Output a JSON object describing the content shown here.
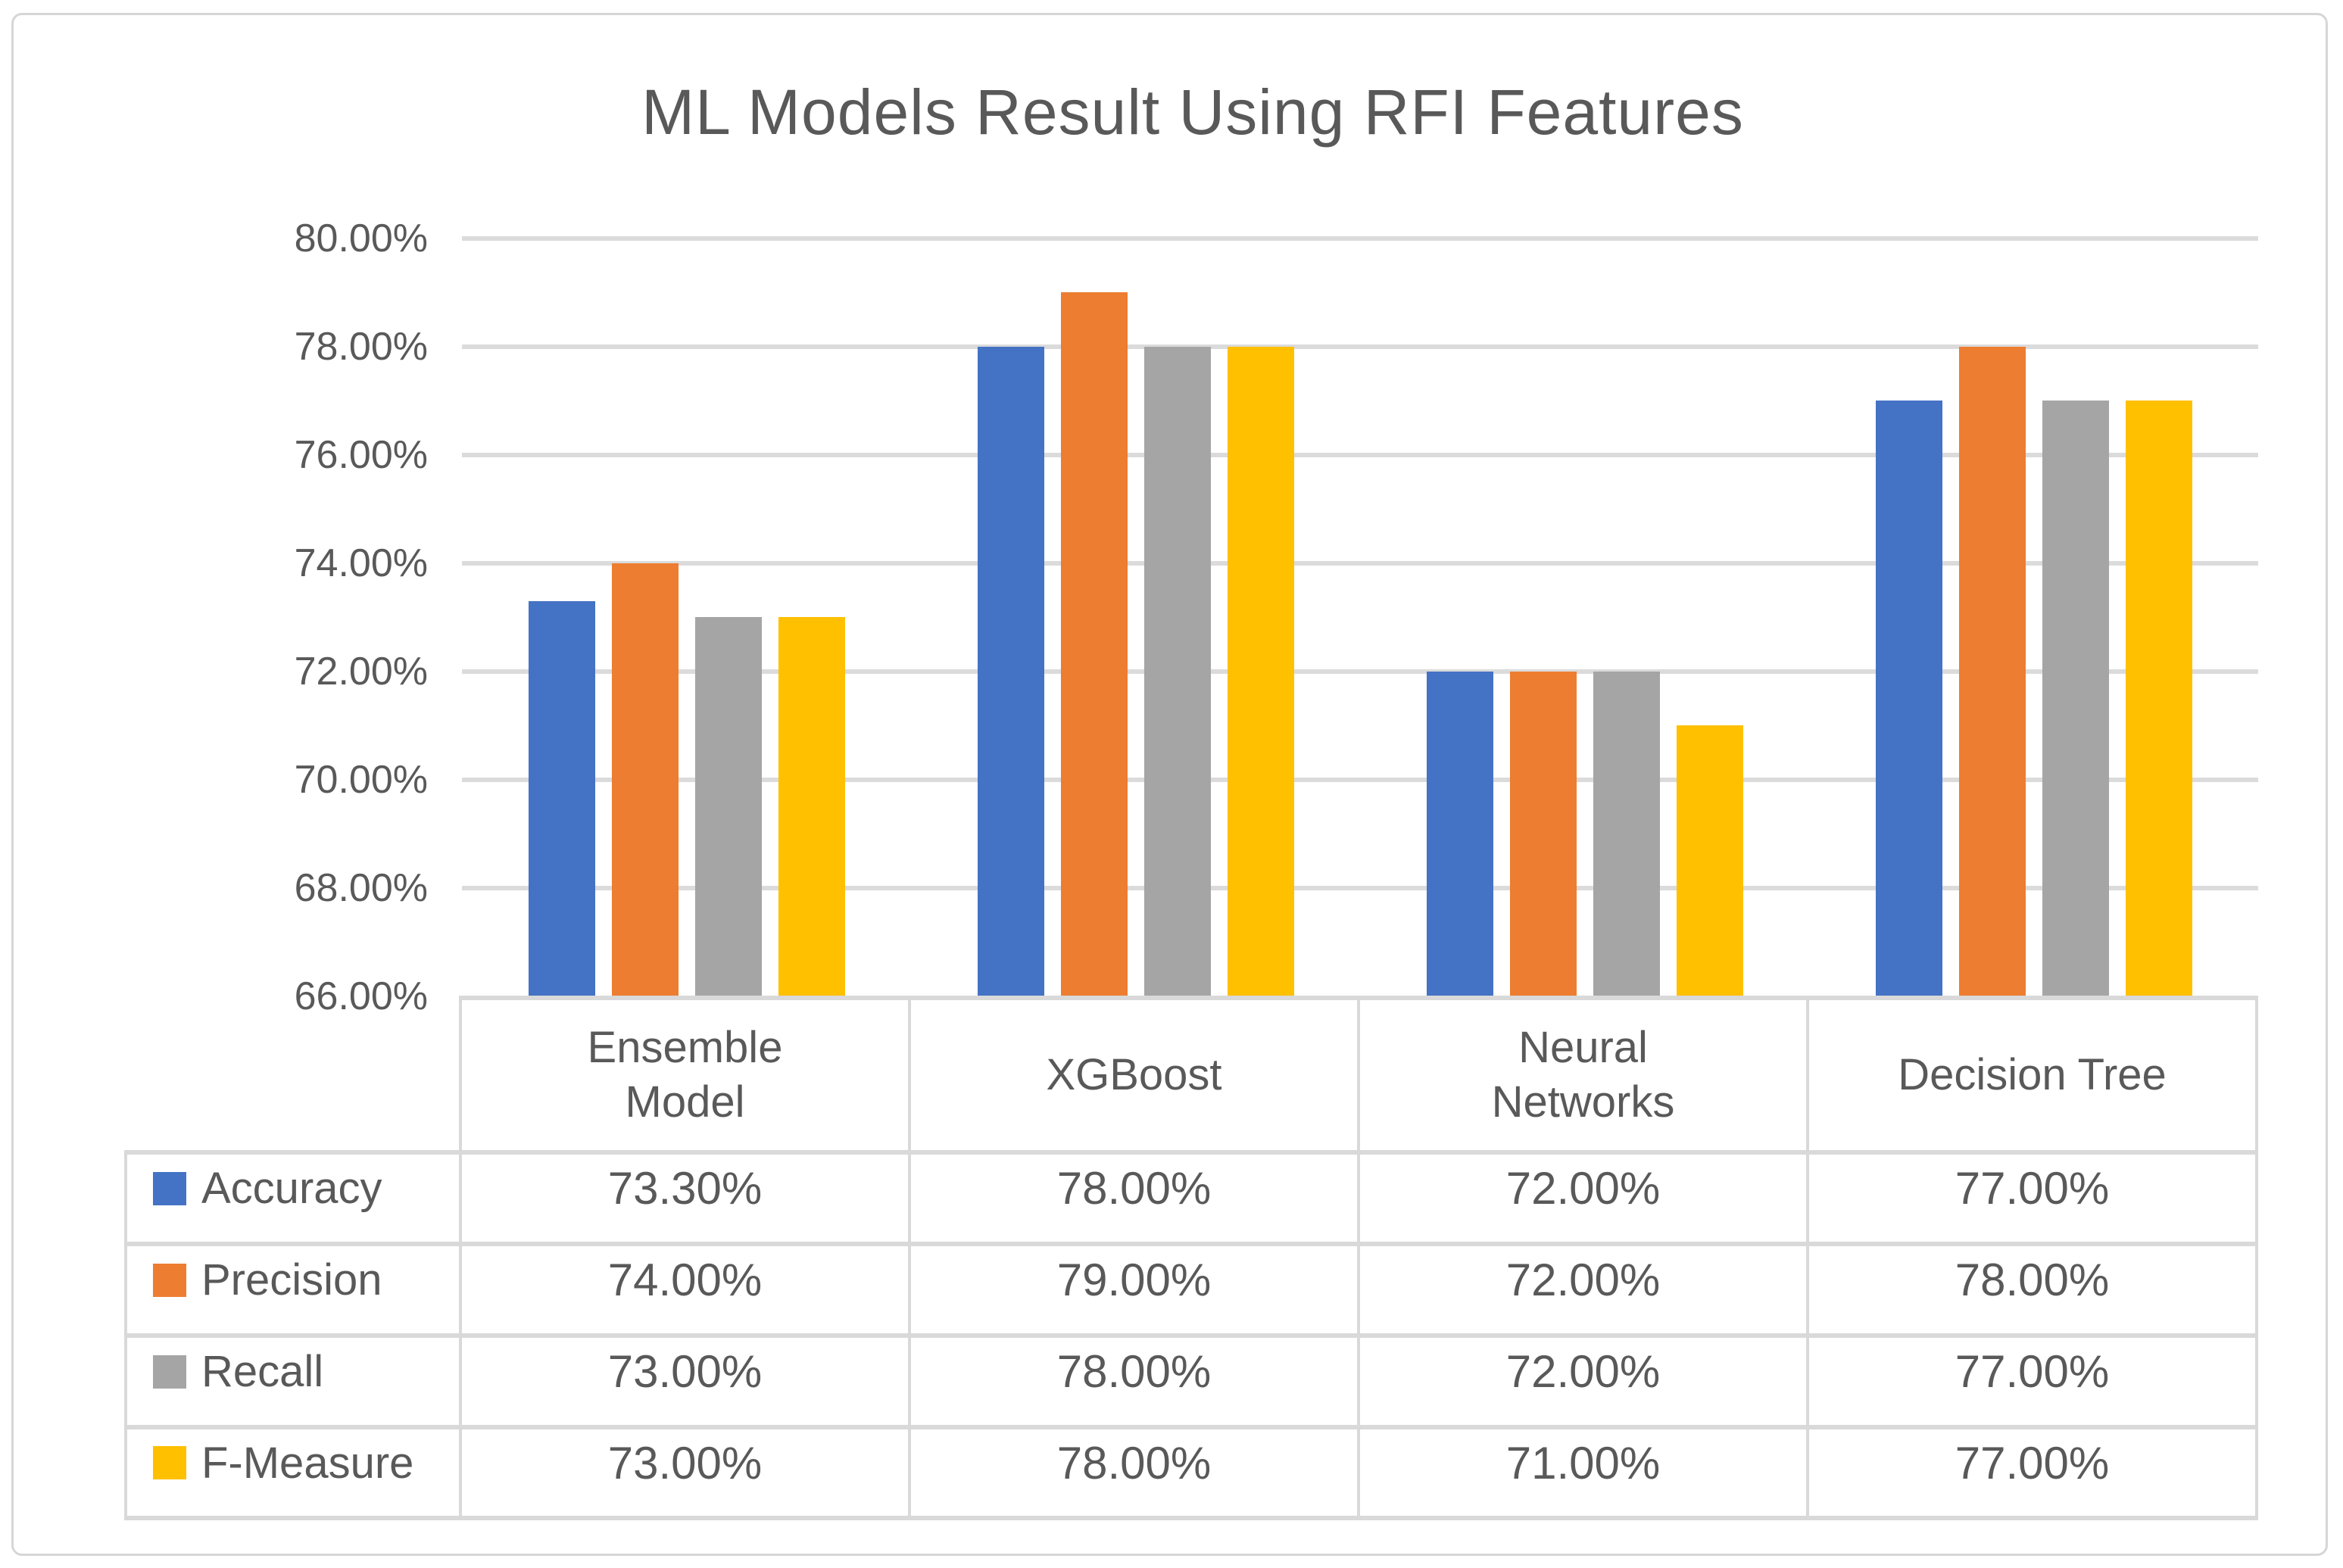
{
  "chart_data": {
    "type": "bar",
    "title": "ML Models Result Using RFI Features",
    "categories": [
      {
        "label": "Ensemble Model",
        "lines": [
          "Ensemble",
          "Model"
        ]
      },
      {
        "label": "XGBoost",
        "lines": [
          "XGBoost"
        ]
      },
      {
        "label": "Neural Networks",
        "lines": [
          "Neural",
          "Networks"
        ]
      },
      {
        "label": "Decision Tree",
        "lines": [
          "Decision Tree"
        ]
      }
    ],
    "series": [
      {
        "name": "Accuracy",
        "color": "#4472C4",
        "values": [
          73.3,
          78.0,
          72.0,
          77.0
        ],
        "labels": [
          "73.30%",
          "78.00%",
          "72.00%",
          "77.00%"
        ]
      },
      {
        "name": "Precision",
        "color": "#ED7D31",
        "values": [
          74.0,
          79.0,
          72.0,
          78.0
        ],
        "labels": [
          "74.00%",
          "79.00%",
          "72.00%",
          "78.00%"
        ]
      },
      {
        "name": "Recall",
        "color": "#A5A5A5",
        "values": [
          73.0,
          78.0,
          72.0,
          77.0
        ],
        "labels": [
          "73.00%",
          "78.00%",
          "72.00%",
          "77.00%"
        ]
      },
      {
        "name": "F-Measure",
        "color": "#FFC000",
        "values": [
          73.0,
          78.0,
          71.0,
          77.0
        ],
        "labels": [
          "73.00%",
          "78.00%",
          "71.00%",
          "77.00%"
        ]
      }
    ],
    "y_axis": {
      "min": 66,
      "max": 80,
      "step": 2,
      "tick_labels": [
        "80.00%",
        "78.00%",
        "76.00%",
        "74.00%",
        "72.00%",
        "70.00%",
        "68.00%",
        "66.00%"
      ]
    },
    "grid": true,
    "legend_position": "table-left",
    "colors": {
      "text": "#595959",
      "gridline": "#DBDBDB",
      "table_border": "#D9D9D9",
      "frame_border": "#D6D6D6",
      "background": "#FFFFFF"
    }
  }
}
